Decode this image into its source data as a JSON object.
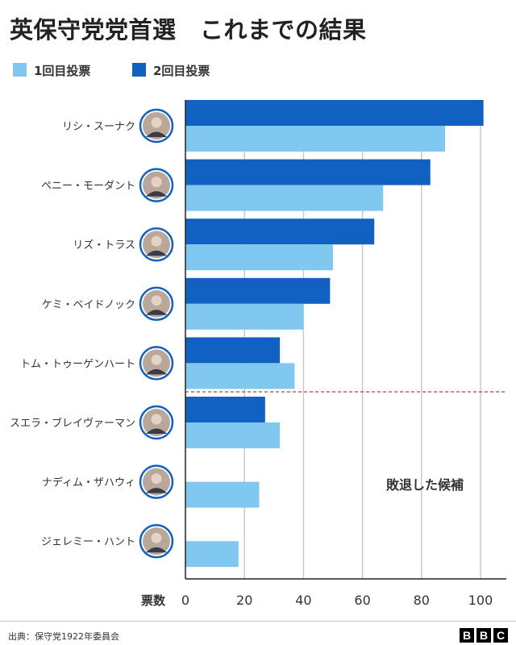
{
  "title": "英保守党党首選　これまでの結果",
  "legend": [
    {
      "label": "1回目投票",
      "color": "#80c8f0"
    },
    {
      "label": "2回目投票",
      "color": "#1161c2"
    }
  ],
  "annotation": "敗退した候補",
  "source": "出典：保守党1922年委員会",
  "logo": [
    "B",
    "B",
    "C"
  ],
  "chart_data": {
    "type": "bar",
    "orientation": "horizontal",
    "categories": [
      "リシ・スーナク",
      "ペニー・モーダント",
      "リズ・トラス",
      "ケミ・ベイドノック",
      "トム・トゥーゲンハート",
      "スエラ・ブレイヴァーマン",
      "ナディム・ザハウィ",
      "ジェレミー・ハント"
    ],
    "series": [
      {
        "name": "2回目投票",
        "color": "#1161c2",
        "values": [
          101,
          83,
          64,
          49,
          32,
          27,
          null,
          null
        ]
      },
      {
        "name": "1回目投票",
        "color": "#80c8f0",
        "values": [
          88,
          67,
          50,
          40,
          37,
          32,
          25,
          18
        ]
      }
    ],
    "xlabel": "票数",
    "ticks": [
      0,
      20,
      40,
      60,
      80,
      100
    ],
    "xlim": [
      0,
      110
    ],
    "grid": true,
    "eliminated_after_index": 4,
    "colors": {
      "grid": "#c8c8c8",
      "axis": "#222222",
      "divider": "#b04040",
      "photo": "#1161c2"
    }
  }
}
